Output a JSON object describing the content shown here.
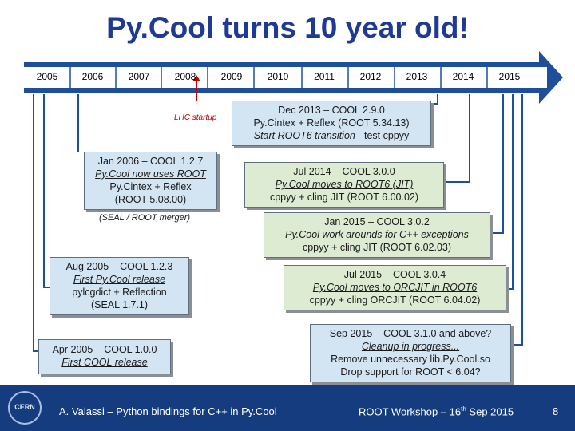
{
  "title": "Py.Cool turns 10 year old!",
  "years": [
    "2005",
    "2006",
    "2007",
    "2008",
    "2009",
    "2010",
    "2011",
    "2012",
    "2013",
    "2014",
    "2015"
  ],
  "lhc_label": "LHC startup",
  "seal_note": "(SEAL / ROOT merger)",
  "boxes": {
    "apr2005": {
      "line1": "Apr 2005 – COOL 1.0.0",
      "line2": "First COOL release"
    },
    "aug2005": {
      "line1": "Aug 2005 – COOL 1.2.3",
      "line2": "First Py.Cool release",
      "line3": "pylcgdict + Reflection",
      "line4": "(SEAL 1.7.1)"
    },
    "jan2006": {
      "line1": "Jan 2006 – COOL 1.2.7",
      "line2": "Py.Cool now uses ROOT",
      "line3": "Py.Cintex + Reflex",
      "line4": "(ROOT 5.08.00)"
    },
    "dec2013": {
      "line1": "Dec 2013 – COOL 2.9.0",
      "line2": "Py.Cintex + Reflex (ROOT 5.34.13)",
      "line3": "Start ROOT6 transition",
      "line3b": " - test cppyy"
    },
    "jul2014": {
      "line1": "Jul 2014 – COOL 3.0.0",
      "line2": "Py.Cool moves to ROOT6 (JIT)",
      "line3": "cppyy + cling JIT (ROOT 6.00.02)"
    },
    "jan2015": {
      "line1": "Jan 2015 – COOL 3.0.2",
      "line2": "Py.Cool work arounds for C++ exceptions",
      "line3": "cppyy + cling JIT (ROOT 6.02.03)"
    },
    "jul2015": {
      "line1": "Jul 2015 – COOL 3.0.4",
      "line2": "Py.Cool moves to ORCJIT in ROOT6",
      "line3": "cppyy + cling ORCJIT (ROOT 6.04.02)"
    },
    "sep2015": {
      "line1": "Sep 2015 – COOL 3.1.0 and above?",
      "line2": "Cleanup in progress...",
      "line3": "Remove unnecessary lib.Py.Cool.so",
      "line4": "Drop support for ROOT < 6.04?"
    }
  },
  "footer": {
    "author": "A. Valassi – Python bindings for C++ in Py.Cool",
    "event_pre": "ROOT Workshop – 16",
    "event_sup": "th",
    "event_post": " Sep 2015",
    "page": "8",
    "logo": "CERN"
  },
  "colors": {
    "title": "#1f3a93",
    "arrow": "#1f4f9a",
    "footer": "#143c7f",
    "lhc": "#c00000"
  }
}
